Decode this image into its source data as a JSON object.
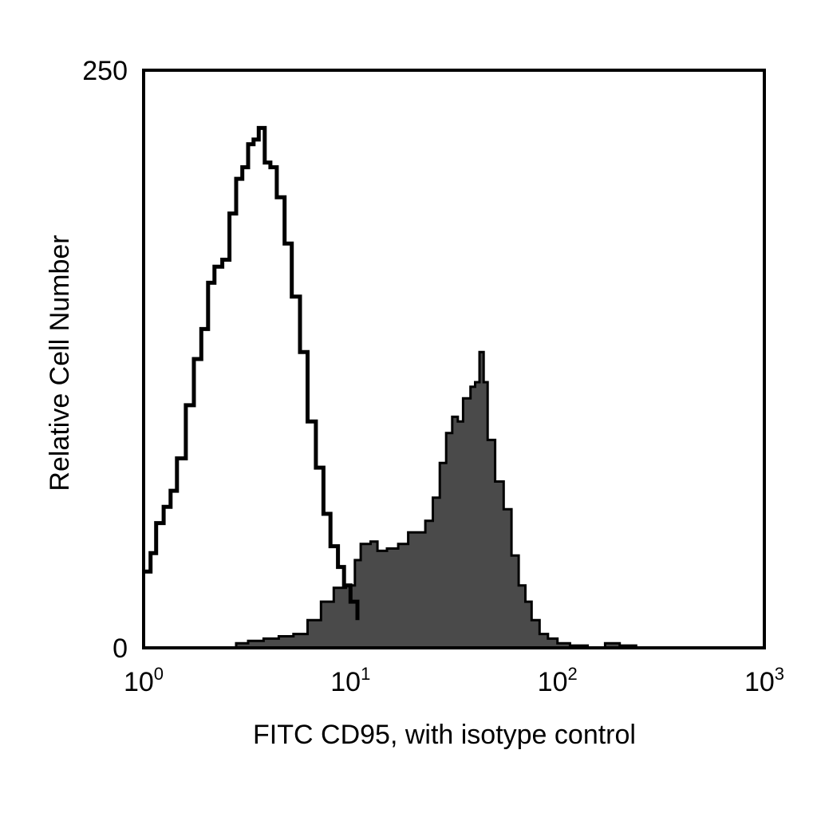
{
  "chart_data": {
    "type": "area",
    "title": "",
    "xlabel": "FITC CD95, with isotype control",
    "ylabel": "Relative Cell Number",
    "x_scale": "log",
    "xlim": [
      1,
      1000
    ],
    "ylim": [
      0,
      250
    ],
    "x_ticks": [
      {
        "base": "10",
        "exp": "0",
        "value": 1
      },
      {
        "base": "10",
        "exp": "1",
        "value": 10
      },
      {
        "base": "10",
        "exp": "2",
        "value": 100
      },
      {
        "base": "10",
        "exp": "3",
        "value": 1000
      }
    ],
    "y_ticks": [
      {
        "label": "0",
        "value": 0
      },
      {
        "label": "250",
        "value": 250
      }
    ],
    "grid": false,
    "series": [
      {
        "role": "isotype control",
        "style": "outline",
        "color": "#000000",
        "x": [
          1.0,
          1.08,
          1.15,
          1.25,
          1.35,
          1.45,
          1.6,
          1.75,
          1.9,
          2.05,
          2.2,
          2.4,
          2.6,
          2.8,
          3.0,
          3.2,
          3.4,
          3.6,
          3.85,
          4.1,
          4.4,
          4.8,
          5.2,
          5.7,
          6.2,
          6.8,
          7.4,
          8.0,
          8.7,
          9.3,
          10.0,
          10.8
        ],
        "y": [
          33,
          41,
          54,
          61,
          68,
          82,
          105,
          125,
          138,
          158,
          165,
          168,
          188,
          203,
          208,
          218,
          220,
          225,
          210,
          208,
          195,
          175,
          152,
          128,
          98,
          78,
          58,
          44,
          35,
          27,
          20,
          12
        ]
      },
      {
        "role": "FITC CD95",
        "style": "filled",
        "color": "#4a4a4a",
        "x": [
          1.0,
          1.3,
          1.8,
          2.3,
          2.8,
          3.2,
          3.8,
          4.5,
          5.3,
          6.2,
          7.2,
          8.3,
          9.5,
          10.5,
          11.2,
          11.8,
          12.5,
          13.5,
          15,
          17,
          19,
          21,
          23,
          25,
          27,
          29,
          31,
          33,
          35,
          38,
          40,
          42,
          44,
          46,
          50,
          55,
          60,
          65,
          70,
          75,
          82,
          90,
          100,
          115,
          140,
          170,
          200,
          240,
          300,
          400,
          500,
          700,
          1000
        ],
        "y": [
          0,
          0,
          0,
          0,
          2,
          3,
          4,
          5,
          6,
          12,
          20,
          26,
          27,
          38,
          45,
          45,
          46,
          42,
          43,
          45,
          50,
          50,
          55,
          65,
          80,
          93,
          100,
          98,
          108,
          113,
          115,
          128,
          115,
          90,
          72,
          60,
          40,
          27,
          20,
          12,
          6,
          4,
          2,
          1,
          0,
          2,
          1,
          0,
          0,
          0,
          0,
          0,
          0
        ]
      }
    ]
  }
}
